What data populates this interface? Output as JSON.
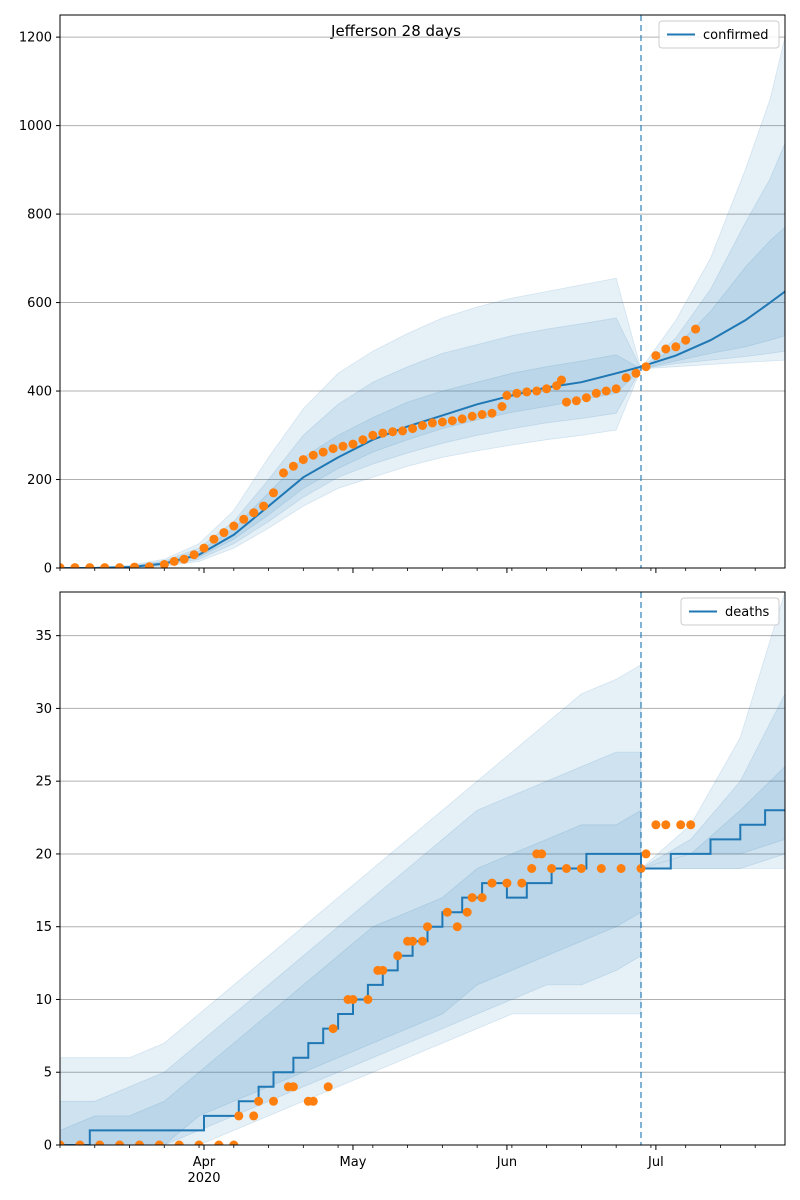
{
  "suptitle": "Jefferson 28 days",
  "colors": {
    "model": "#1f77b4",
    "observed": "#ff7f0e",
    "band": "#1f77b4",
    "grid": "#b0b0b0",
    "forecast_line": "#1f77b4"
  },
  "x_axis": {
    "start": "2020-03-03",
    "end": "2020-07-27",
    "month_ticks": [
      {
        "date": "2020-04-01",
        "label": "Apr",
        "sublabel": "2020"
      },
      {
        "date": "2020-05-01",
        "label": "May",
        "sublabel": ""
      },
      {
        "date": "2020-06-01",
        "label": "Jun",
        "sublabel": ""
      },
      {
        "date": "2020-07-01",
        "label": "Jul",
        "sublabel": ""
      }
    ]
  },
  "forecast_start": "2020-06-28",
  "chart_data": [
    {
      "type": "line",
      "legend": "confirmed",
      "legend_position": "top-right",
      "grid": "horizontal",
      "ylim": [
        0,
        1250
      ],
      "yticks": [
        0,
        200,
        400,
        600,
        800,
        1000,
        1200
      ],
      "model_x": [
        "2020-03-03",
        "2020-03-10",
        "2020-03-17",
        "2020-03-24",
        "2020-03-31",
        "2020-04-07",
        "2020-04-14",
        "2020-04-21",
        "2020-04-28",
        "2020-05-05",
        "2020-05-12",
        "2020-05-19",
        "2020-05-26",
        "2020-06-02",
        "2020-06-09",
        "2020-06-16",
        "2020-06-23",
        "2020-06-28",
        "2020-07-05",
        "2020-07-12",
        "2020-07-19",
        "2020-07-24",
        "2020-07-27"
      ],
      "model_y": [
        0,
        0,
        2,
        10,
        30,
        75,
        140,
        205,
        250,
        290,
        320,
        345,
        370,
        390,
        408,
        420,
        440,
        455,
        480,
        515,
        560,
        600,
        625
      ],
      "bands": [
        {
          "lower": [
            0,
            0,
            0,
            4,
            15,
            45,
            90,
            140,
            180,
            205,
            230,
            250,
            265,
            278,
            290,
            300,
            312,
            450,
            455,
            460,
            465,
            468,
            470
          ],
          "upper": [
            0,
            2,
            6,
            20,
            55,
            130,
            250,
            360,
            440,
            490,
            530,
            565,
            590,
            610,
            625,
            640,
            655,
            450,
            560,
            700,
            900,
            1060,
            1200
          ]
        },
        {
          "lower": [
            0,
            0,
            1,
            6,
            20,
            55,
            105,
            160,
            205,
            235,
            260,
            282,
            300,
            315,
            328,
            338,
            350,
            450,
            462,
            470,
            478,
            485,
            490
          ],
          "upper": [
            0,
            1,
            4,
            16,
            45,
            105,
            200,
            300,
            370,
            420,
            455,
            485,
            505,
            525,
            540,
            552,
            565,
            450,
            520,
            630,
            780,
            880,
            960
          ]
        },
        {
          "lower": [
            0,
            0,
            1,
            8,
            25,
            65,
            120,
            180,
            225,
            262,
            290,
            315,
            335,
            352,
            365,
            380,
            395,
            450,
            468,
            485,
            500,
            515,
            525
          ],
          "upper": [
            0,
            1,
            3,
            13,
            38,
            90,
            170,
            250,
            300,
            340,
            375,
            400,
            420,
            440,
            455,
            468,
            482,
            450,
            500,
            580,
            680,
            740,
            770
          ]
        }
      ],
      "observed_x": [
        "2020-03-03",
        "2020-03-06",
        "2020-03-09",
        "2020-03-12",
        "2020-03-15",
        "2020-03-18",
        "2020-03-21",
        "2020-03-24",
        "2020-03-26",
        "2020-03-28",
        "2020-03-30",
        "2020-04-01",
        "2020-04-03",
        "2020-04-05",
        "2020-04-07",
        "2020-04-09",
        "2020-04-11",
        "2020-04-13",
        "2020-04-15",
        "2020-04-17",
        "2020-04-19",
        "2020-04-21",
        "2020-04-23",
        "2020-04-25",
        "2020-04-27",
        "2020-04-29",
        "2020-05-01",
        "2020-05-03",
        "2020-05-05",
        "2020-05-07",
        "2020-05-09",
        "2020-05-11",
        "2020-05-13",
        "2020-05-15",
        "2020-05-17",
        "2020-05-19",
        "2020-05-21",
        "2020-05-23",
        "2020-05-25",
        "2020-05-27",
        "2020-05-29",
        "2020-05-31",
        "2020-06-01",
        "2020-06-03",
        "2020-06-05",
        "2020-06-07",
        "2020-06-09",
        "2020-06-11",
        "2020-06-12",
        "2020-06-13",
        "2020-06-15",
        "2020-06-17",
        "2020-06-19",
        "2020-06-21",
        "2020-06-23",
        "2020-06-25",
        "2020-06-27",
        "2020-06-29",
        "2020-07-01",
        "2020-07-03",
        "2020-07-05",
        "2020-07-07",
        "2020-07-09"
      ],
      "observed_y": [
        1,
        1,
        1,
        1,
        1,
        2,
        3,
        8,
        15,
        20,
        30,
        45,
        65,
        80,
        95,
        110,
        125,
        140,
        170,
        215,
        230,
        245,
        255,
        262,
        270,
        275,
        280,
        290,
        300,
        305,
        308,
        310,
        315,
        322,
        328,
        330,
        333,
        337,
        343,
        347,
        350,
        365,
        390,
        395,
        398,
        400,
        405,
        412,
        425,
        375,
        378,
        385,
        395,
        400,
        405,
        430,
        440,
        455,
        480,
        495,
        500,
        515,
        540
      ]
    },
    {
      "type": "line",
      "legend": "deaths",
      "legend_position": "top-right",
      "grid": "horizontal",
      "ylim": [
        0,
        38
      ],
      "yticks": [
        0,
        5,
        10,
        15,
        20,
        25,
        30,
        35
      ],
      "model_x": [
        "2020-03-03",
        "2020-03-09",
        "2020-03-09",
        "2020-04-01",
        "2020-04-01",
        "2020-04-08",
        "2020-04-08",
        "2020-04-12",
        "2020-04-12",
        "2020-04-15",
        "2020-04-15",
        "2020-04-19",
        "2020-04-19",
        "2020-04-22",
        "2020-04-22",
        "2020-04-25",
        "2020-04-25",
        "2020-04-28",
        "2020-04-28",
        "2020-05-01",
        "2020-05-01",
        "2020-05-04",
        "2020-05-04",
        "2020-05-07",
        "2020-05-07",
        "2020-05-10",
        "2020-05-10",
        "2020-05-13",
        "2020-05-13",
        "2020-05-16",
        "2020-05-16",
        "2020-05-19",
        "2020-05-19",
        "2020-05-23",
        "2020-05-23",
        "2020-05-27",
        "2020-05-27",
        "2020-06-01",
        "2020-06-01",
        "2020-06-05",
        "2020-06-05",
        "2020-06-10",
        "2020-06-10",
        "2020-06-17",
        "2020-06-17",
        "2020-06-24",
        "2020-06-24",
        "2020-06-28",
        "2020-06-28",
        "2020-07-04",
        "2020-07-04",
        "2020-07-12",
        "2020-07-12",
        "2020-07-18",
        "2020-07-18",
        "2020-07-23",
        "2020-07-23",
        "2020-07-27"
      ],
      "model_y": [
        0,
        0,
        1,
        1,
        2,
        2,
        3,
        3,
        4,
        4,
        5,
        5,
        6,
        6,
        7,
        7,
        8,
        8,
        9,
        9,
        10,
        10,
        11,
        11,
        12,
        12,
        13,
        13,
        14,
        14,
        15,
        15,
        16,
        16,
        17,
        17,
        18,
        18,
        17,
        17,
        18,
        18,
        19,
        19,
        20,
        20,
        20,
        20,
        19,
        19,
        20,
        20,
        21,
        21,
        22,
        22,
        23,
        23
      ],
      "bands": [
        {
          "lower": [
            0,
            0,
            0,
            0,
            0,
            1,
            2,
            3,
            4,
            5,
            6,
            7,
            8,
            9,
            9,
            9,
            9,
            9,
            19,
            19,
            19,
            19
          ],
          "upper": [
            6,
            6,
            6,
            7,
            9,
            11,
            13,
            15,
            17,
            19,
            21,
            23,
            25,
            27,
            29,
            31,
            32,
            33,
            19,
            22,
            28,
            38
          ]
        },
        {
          "lower": [
            0,
            0,
            0,
            0,
            1,
            2,
            3,
            4,
            5,
            6,
            7,
            8,
            9,
            10,
            11,
            11,
            12,
            13,
            19,
            19,
            19,
            20
          ],
          "upper": [
            3,
            3,
            4,
            5,
            7,
            9,
            11,
            13,
            15,
            17,
            19,
            21,
            23,
            24,
            25,
            26,
            27,
            27,
            19,
            21,
            25,
            31
          ]
        },
        {
          "lower": [
            0,
            0,
            0,
            0,
            2,
            3,
            4,
            5,
            6,
            7,
            8,
            9,
            11,
            12,
            13,
            14,
            15,
            16,
            19,
            20,
            20,
            21
          ],
          "upper": [
            1,
            2,
            2,
            3,
            5,
            7,
            9,
            11,
            13,
            15,
            16,
            17,
            19,
            20,
            21,
            22,
            22,
            23,
            19,
            20,
            23,
            26
          ]
        }
      ],
      "band_x": [
        "2020-03-03",
        "2020-03-10",
        "2020-03-17",
        "2020-03-24",
        "2020-03-31",
        "2020-04-07",
        "2020-04-14",
        "2020-04-21",
        "2020-04-28",
        "2020-05-05",
        "2020-05-12",
        "2020-05-19",
        "2020-05-26",
        "2020-06-02",
        "2020-06-09",
        "2020-06-16",
        "2020-06-23",
        "2020-06-28",
        "2020-06-28",
        "2020-07-08",
        "2020-07-18",
        "2020-07-27"
      ],
      "observed_x": [
        "2020-03-03",
        "2020-03-07",
        "2020-03-11",
        "2020-03-15",
        "2020-03-19",
        "2020-03-23",
        "2020-03-27",
        "2020-03-31",
        "2020-04-04",
        "2020-04-07",
        "2020-04-08",
        "2020-04-11",
        "2020-04-12",
        "2020-04-15",
        "2020-04-18",
        "2020-04-19",
        "2020-04-22",
        "2020-04-23",
        "2020-04-26",
        "2020-04-27",
        "2020-04-30",
        "2020-05-01",
        "2020-05-04",
        "2020-05-06",
        "2020-05-07",
        "2020-05-10",
        "2020-05-12",
        "2020-05-13",
        "2020-05-15",
        "2020-05-16",
        "2020-05-20",
        "2020-05-22",
        "2020-05-24",
        "2020-05-25",
        "2020-05-27",
        "2020-05-29",
        "2020-06-01",
        "2020-06-04",
        "2020-06-06",
        "2020-06-07",
        "2020-06-08",
        "2020-06-10",
        "2020-06-13",
        "2020-06-16",
        "2020-06-20",
        "2020-06-24",
        "2020-06-28",
        "2020-06-29",
        "2020-07-01",
        "2020-07-03",
        "2020-07-06",
        "2020-07-08"
      ],
      "observed_y": [
        0,
        0,
        0,
        0,
        0,
        0,
        0,
        0,
        0,
        0,
        2,
        2,
        3,
        3,
        4,
        4,
        3,
        3,
        4,
        8,
        10,
        10,
        10,
        12,
        12,
        13,
        14,
        14,
        14,
        15,
        16,
        15,
        16,
        17,
        17,
        18,
        18,
        18,
        19,
        20,
        20,
        19,
        19,
        19,
        19,
        19,
        19,
        20,
        22,
        22,
        22,
        22
      ]
    }
  ]
}
